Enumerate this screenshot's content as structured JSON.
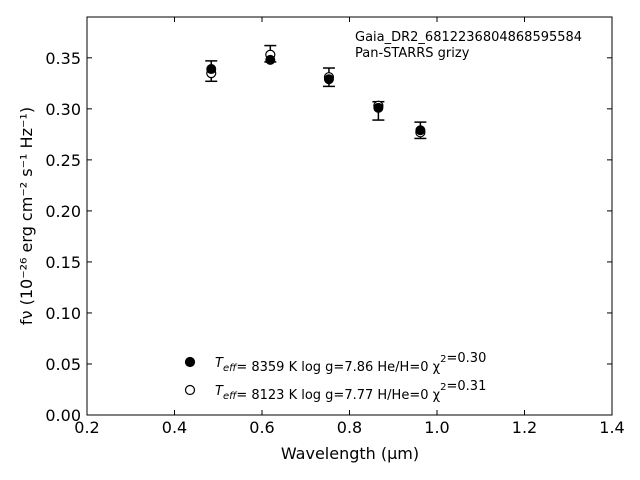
{
  "chart_data": {
    "type": "scatter",
    "title": "",
    "xlabel": "Wavelength (μm)",
    "ylabel": "fν (10⁻²⁶ erg cm⁻² s⁻¹ Hz⁻¹)",
    "xlim": [
      0.2,
      1.4
    ],
    "ylim": [
      0.0,
      0.39
    ],
    "x_ticks": [
      "0.2",
      "0.4",
      "0.6",
      "0.8",
      "1.0",
      "1.2",
      "1.4"
    ],
    "y_ticks": [
      "0.00",
      "0.05",
      "0.10",
      "0.15",
      "0.20",
      "0.25",
      "0.30",
      "0.35"
    ],
    "annotation": [
      "Gaia_DR2_6812236804868595584",
      "Pan-STARRS grizy"
    ],
    "observed": {
      "x": [
        0.484,
        0.619,
        0.753,
        0.866,
        0.962
      ],
      "y": [
        0.337,
        0.354,
        0.331,
        0.298,
        0.279
      ],
      "yerr": [
        0.01,
        0.008,
        0.009,
        0.009,
        0.008
      ]
    },
    "series": [
      {
        "marker": "filled-circle",
        "x": [
          0.484,
          0.619,
          0.753,
          0.866,
          0.962
        ],
        "y": [
          0.339,
          0.348,
          0.329,
          0.301,
          0.279
        ],
        "legend_parts": [
          "T",
          "eff",
          "=  8359 K  log g=7.86  He/H=0  χ",
          "2",
          "=0.30"
        ]
      },
      {
        "marker": "open-circle",
        "x": [
          0.484,
          0.619,
          0.753,
          0.866,
          0.962
        ],
        "y": [
          0.335,
          0.353,
          0.331,
          0.303,
          0.277
        ],
        "legend_parts": [
          "T",
          "eff",
          "=  8123 K  log g=7.77  H/He=0  χ",
          "2",
          "=0.31"
        ]
      }
    ],
    "grid": false,
    "legend_position": "lower-center"
  }
}
